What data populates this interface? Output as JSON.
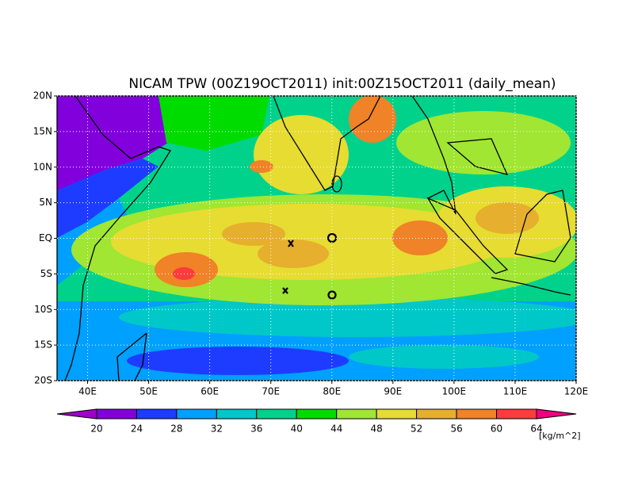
{
  "title": "NICAM TPW (00Z19OCT2011) init:00Z15OCT2011 (daily_mean)",
  "map": {
    "xlim": [
      35,
      120
    ],
    "ylim": [
      -20,
      20
    ],
    "xticks": [
      {
        "value": 40,
        "label": "40E"
      },
      {
        "value": 50,
        "label": "50E"
      },
      {
        "value": 60,
        "label": "60E"
      },
      {
        "value": 70,
        "label": "70E"
      },
      {
        "value": 80,
        "label": "80E"
      },
      {
        "value": 90,
        "label": "90E"
      },
      {
        "value": 100,
        "label": "100E"
      },
      {
        "value": 110,
        "label": "110E"
      },
      {
        "value": 120,
        "label": "120E"
      }
    ],
    "yticks": [
      {
        "value": 20,
        "label": "20N"
      },
      {
        "value": 15,
        "label": "15N"
      },
      {
        "value": 10,
        "label": "10N"
      },
      {
        "value": 5,
        "label": "5N"
      },
      {
        "value": 0,
        "label": "EQ"
      },
      {
        "value": -5,
        "label": "5S"
      },
      {
        "value": -10,
        "label": "10S"
      },
      {
        "value": -15,
        "label": "15S"
      },
      {
        "value": -20,
        "label": "20S"
      }
    ]
  },
  "colorbar": {
    "levels": [
      20,
      24,
      28,
      32,
      36,
      40,
      44,
      48,
      52,
      56,
      60,
      64
    ],
    "colors": [
      "#a000c8",
      "#8200dc",
      "#1e3cff",
      "#00a0ff",
      "#00c8c8",
      "#00d28c",
      "#00dc00",
      "#a0e632",
      "#e6dc32",
      "#e6af2d",
      "#f08228",
      "#fa3c3c",
      "#f00082"
    ],
    "unit": "[kg/m^2]"
  }
}
